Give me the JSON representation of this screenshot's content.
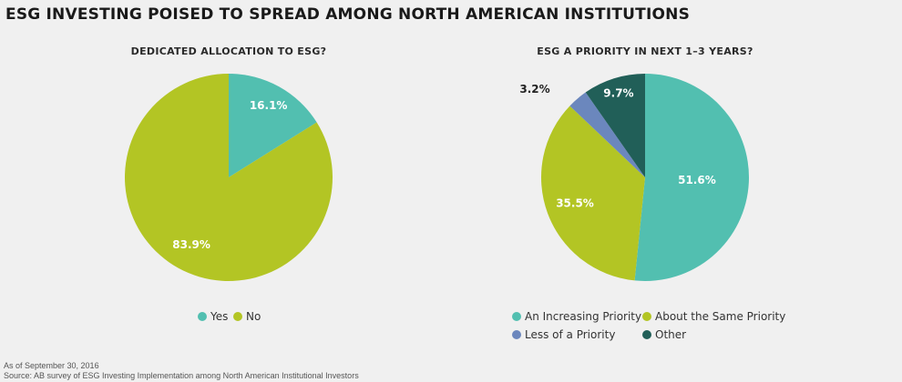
{
  "title": "ESG INVESTING POISED TO SPREAD AMONG NORTH AMERICAN INSTITUTIONS",
  "chart_data": [
    {
      "type": "pie",
      "title": "DEDICATED ALLOCATION TO ESG?",
      "slices": [
        {
          "name": "Yes",
          "value": 16.1,
          "label": "16.1%",
          "color": "#52bfb0"
        },
        {
          "name": "No",
          "value": 83.9,
          "label": "83.9%",
          "color": "#b3c524"
        }
      ],
      "legend": "bottom"
    },
    {
      "type": "pie",
      "title": "ESG A PRIORITY IN NEXT 1–3 YEARS?",
      "slices": [
        {
          "name": "An Increasing Priority",
          "value": 51.6,
          "label": "51.6%",
          "color": "#52bfb0"
        },
        {
          "name": "About the Same Priority",
          "value": 35.5,
          "label": "35.5%",
          "color": "#b3c524"
        },
        {
          "name": "Less of a Priority",
          "value": 3.2,
          "label": "3.2%",
          "color": "#6b87bd"
        },
        {
          "name": "Other",
          "value": 9.7,
          "label": "9.7%",
          "color": "#215f58"
        }
      ],
      "legend": "bottom"
    }
  ],
  "footer": {
    "asof": "As of September 30, 2016",
    "source": "Source:  AB survey of ESG Investing Implementation among North American Institutional Investors"
  }
}
